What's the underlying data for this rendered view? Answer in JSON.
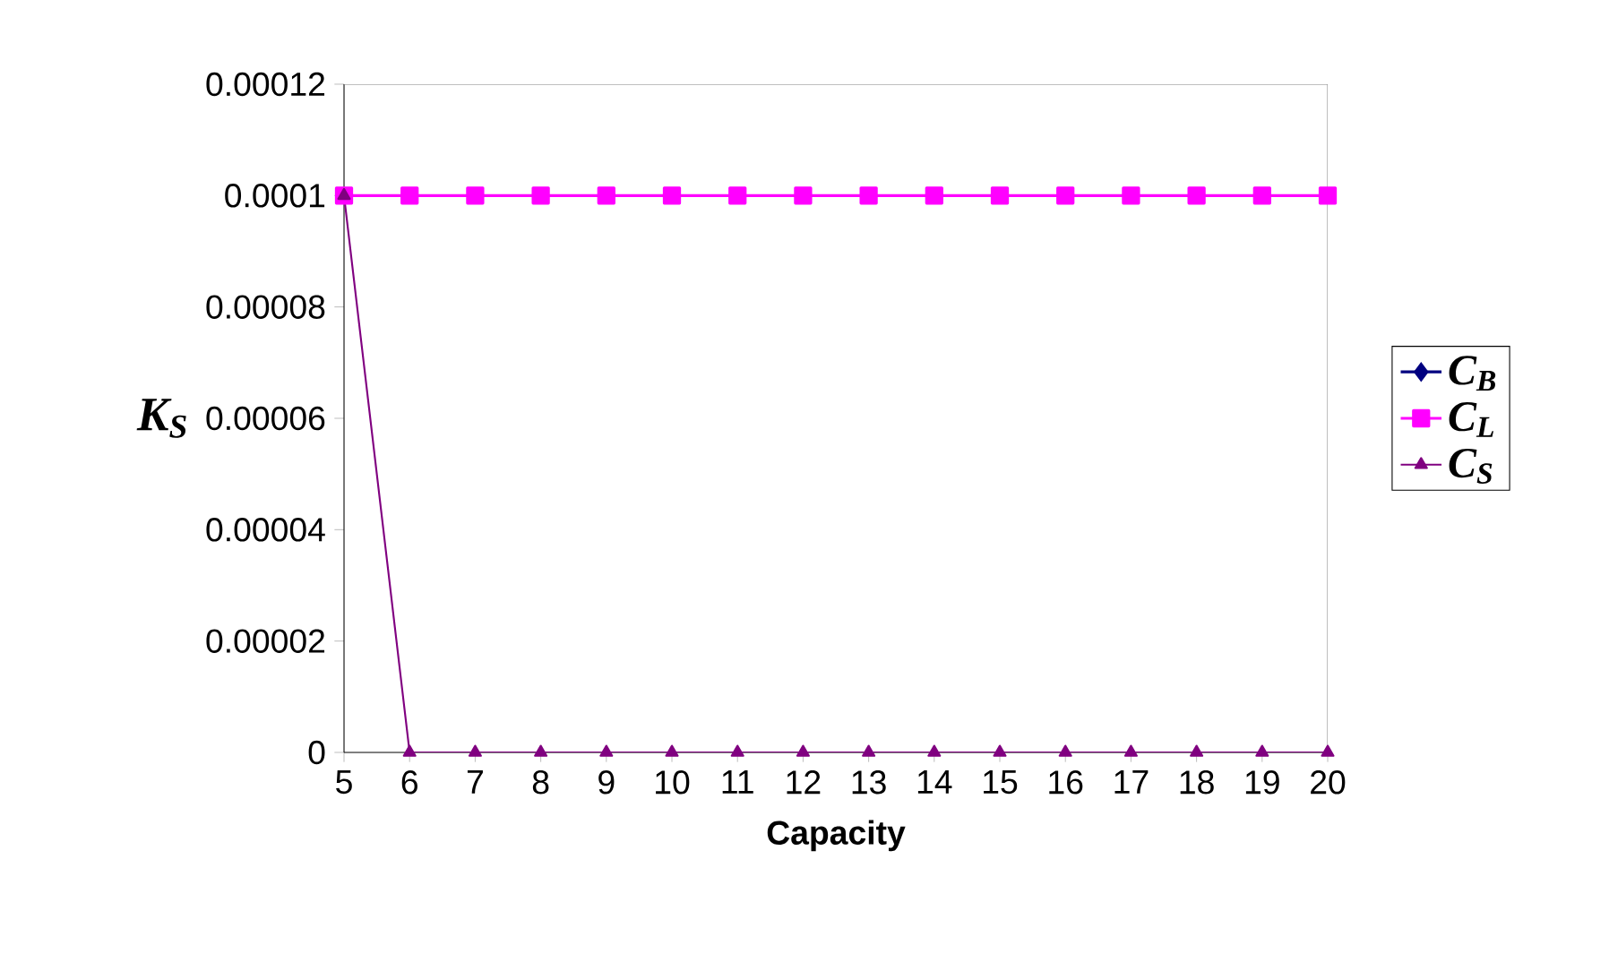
{
  "chart_data": {
    "type": "line",
    "xlabel": "Capacity",
    "ylabel": "K$_{S}$",
    "x": [
      5,
      6,
      7,
      8,
      9,
      10,
      11,
      12,
      13,
      14,
      15,
      16,
      17,
      18,
      19,
      20
    ],
    "xlim": [
      5,
      20
    ],
    "xticks": [
      5,
      6,
      7,
      8,
      9,
      10,
      11,
      12,
      13,
      14,
      15,
      16,
      17,
      18,
      19,
      20
    ],
    "ylim": [
      0,
      0.00012
    ],
    "yticks": [
      0,
      {
        "value": 2e-05,
        "label": "0.00002"
      },
      {
        "value": 4e-05,
        "label": "0.00004"
      },
      {
        "value": 6e-05,
        "label": "0.00006"
      },
      {
        "value": 8e-05,
        "label": "0.00008"
      },
      {
        "value": 0.0001,
        "label": "0.0001"
      },
      {
        "value": 0.00012,
        "label": "0.00012"
      }
    ],
    "grid": false,
    "legend": "right",
    "line_style": "solid",
    "series": [
      {
        "name": "C$_{B}$",
        "color": "#000080",
        "marker": "diamond",
        "values": [
          null,
          null,
          null,
          null,
          null,
          null,
          null,
          null,
          null,
          null,
          null,
          null,
          null,
          null,
          null,
          null
        ]
      },
      {
        "name": "C$_{L}$",
        "color": "#ff00ff",
        "marker": "square",
        "values": [
          0.0001,
          0.0001,
          0.0001,
          0.0001,
          0.0001,
          0.0001,
          0.0001,
          0.0001,
          0.0001,
          0.0001,
          0.0001,
          0.0001,
          0.0001,
          0.0001,
          0.0001,
          0.0001
        ]
      },
      {
        "name": "C$_{S}$",
        "color": "#800080",
        "marker": "triangle",
        "values": [
          0.0001,
          0,
          0,
          0,
          0,
          0,
          0,
          0,
          0,
          0,
          0,
          0,
          0,
          0,
          0,
          0
        ]
      }
    ]
  }
}
